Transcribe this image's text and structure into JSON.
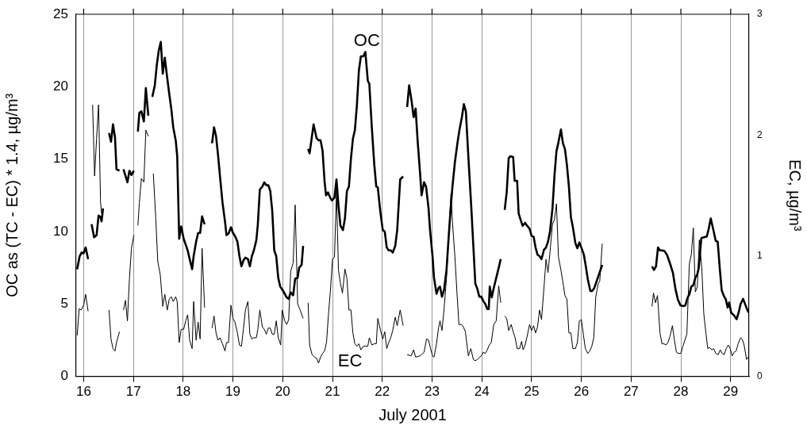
{
  "chart_data": {
    "type": "line",
    "xlabel": "July 2001",
    "ylabel": "OC as (TC - EC) * 1.4, µg/m³",
    "y2label": "EC, µg/m³",
    "xlim": [
      15.85,
      29.37
    ],
    "xticks": [
      16,
      17,
      18,
      19,
      20,
      21,
      22,
      23,
      24,
      25,
      26,
      27,
      28,
      29
    ],
    "ylim": [
      0,
      25
    ],
    "yticks": [
      0,
      5,
      10,
      15,
      20,
      25
    ],
    "y2lim": [
      0,
      3
    ],
    "y2ticks": [
      0,
      1,
      2,
      3
    ],
    "grid": "x",
    "legend": false,
    "marker": "none",
    "line_style": "solid",
    "annotations": [
      "OC",
      "EC"
    ],
    "series": [
      {
        "color": "#000000",
        "x": [
          15.87,
          15.92,
          15.96,
          16.0,
          16.04,
          16.09,
          16.12,
          16.16,
          16.21,
          16.26,
          16.3,
          16.34,
          16.36,
          16.39,
          16.45,
          16.51,
          16.55,
          16.59,
          16.63,
          16.66,
          16.72,
          16.76,
          16.8,
          16.88,
          16.92,
          16.96,
          17.01,
          17.05,
          17.09,
          17.12,
          17.16,
          17.21,
          17.25,
          17.3,
          17.34,
          17.38,
          17.43,
          17.47,
          17.51,
          17.55,
          17.59,
          17.63,
          17.68,
          17.72,
          17.76,
          17.8,
          17.85,
          17.88,
          17.92,
          17.96,
          18.01,
          18.05,
          18.09,
          18.13,
          18.18,
          18.21,
          18.26,
          18.3,
          18.34,
          18.38,
          18.43,
          18.5,
          18.58,
          18.62,
          18.66,
          18.7,
          18.74,
          18.79,
          18.84,
          18.87,
          18.91,
          18.96,
          19.0,
          19.04,
          19.09,
          19.13,
          19.17,
          19.21,
          19.25,
          19.3,
          19.34,
          19.38,
          19.42,
          19.47,
          19.5,
          19.54,
          19.59,
          19.63,
          19.67,
          19.71,
          19.75,
          19.79,
          19.83,
          19.87,
          19.91,
          19.95,
          19.99,
          20.04,
          20.08,
          20.12,
          20.16,
          20.21,
          20.25,
          20.3,
          20.33,
          20.38,
          20.41,
          20.46,
          20.51,
          20.54,
          20.62,
          20.68,
          20.72,
          20.76,
          20.8,
          20.84,
          20.87,
          20.91,
          20.96,
          20.99,
          21.04,
          21.08,
          21.12,
          21.16,
          21.21,
          21.25,
          21.29,
          21.33,
          21.37,
          21.41,
          21.45,
          21.49,
          21.53,
          21.57,
          21.62,
          21.66,
          21.71,
          21.74,
          21.79,
          21.84,
          21.88,
          21.91,
          21.96,
          22.01,
          22.05,
          22.09,
          22.13,
          22.17,
          22.21,
          22.26,
          22.3,
          22.36,
          22.42,
          22.46,
          22.5,
          22.54,
          22.59,
          22.63,
          22.67,
          22.71,
          22.76,
          22.79,
          22.84,
          22.88,
          22.93,
          22.96,
          23.01,
          23.04,
          23.09,
          23.13,
          23.16,
          23.2,
          23.24,
          23.29,
          23.33,
          23.37,
          23.41,
          23.46,
          23.51,
          23.55,
          23.6,
          23.64,
          23.68,
          23.73,
          23.79,
          23.83,
          23.87,
          23.91,
          23.95,
          23.99,
          24.03,
          24.07,
          24.11,
          24.14,
          24.16,
          24.2,
          24.24,
          24.29,
          24.34,
          24.38,
          24.42,
          24.46,
          24.5,
          24.54,
          24.57,
          24.63,
          24.66,
          24.71,
          24.74,
          24.79,
          24.82,
          24.87,
          24.91,
          24.96,
          25.0,
          25.04,
          25.08,
          25.12,
          25.16,
          25.2,
          25.25,
          25.29,
          25.33,
          25.37,
          25.42,
          25.46,
          25.5,
          25.53,
          25.59,
          25.63,
          25.67,
          25.71,
          25.75,
          25.79,
          25.83,
          25.88,
          25.92,
          25.96,
          26.01,
          26.05,
          26.09,
          26.13,
          26.18,
          26.22,
          26.26,
          26.3,
          26.35,
          26.42,
          26.9,
          27.42,
          27.46,
          27.5,
          27.54,
          27.58,
          27.62,
          27.67,
          27.72,
          27.76,
          27.8,
          27.84,
          27.89,
          27.94,
          27.99,
          28.05,
          28.09,
          28.13,
          28.17,
          28.21,
          28.25,
          28.29,
          28.33,
          28.36,
          28.41,
          28.46,
          28.52,
          28.56,
          28.6,
          28.66,
          28.7,
          28.74,
          28.78,
          28.82,
          28.87,
          28.9,
          28.94,
          28.97,
          29.01,
          29.07,
          29.12,
          29.16,
          29.2,
          29.25,
          29.3,
          29.34,
          29.36
        ],
        "values": [
          7.4,
          8.3,
          8.55,
          8.5,
          8.9,
          8.1,
          null,
          10.5,
          9.6,
          9.75,
          11.1,
          11.0,
          10.7,
          11.6,
          null,
          16.8,
          16.2,
          17.4,
          16.5,
          14.3,
          14.2,
          null,
          14.3,
          13.4,
          14.2,
          13.9,
          14.2,
          null,
          16.9,
          18.2,
          18.3,
          17.6,
          19.9,
          18.0,
          null,
          19.3,
          20.1,
          21.5,
          22.5,
          23.1,
          20.9,
          22.0,
          20.6,
          19.5,
          18.5,
          17.2,
          16.3,
          15.2,
          9.5,
          10.35,
          9.5,
          9.1,
          8.7,
          8.1,
          7.4,
          8.3,
          9.3,
          9.9,
          9.9,
          11.05,
          10.5,
          null,
          16.1,
          17.2,
          16.6,
          15.3,
          13.8,
          12.0,
          10.7,
          9.75,
          9.85,
          10.3,
          9.9,
          9.7,
          9.3,
          8.3,
          7.6,
          8.0,
          8.2,
          8.1,
          7.6,
          8.3,
          8.7,
          9.4,
          10.5,
          12.9,
          13.1,
          13.4,
          13.2,
          13.2,
          12.8,
          11.4,
          8.7,
          8.3,
          6.8,
          6.2,
          6.0,
          5.7,
          5.45,
          5.35,
          5.8,
          5.6,
          6.75,
          6.8,
          7.5,
          7.7,
          9.0,
          null,
          15.7,
          15.4,
          17.4,
          16.45,
          16.3,
          16.3,
          15.6,
          13.5,
          12.5,
          12.7,
          12.3,
          12.15,
          12.35,
          13.6,
          11.8,
          10.4,
          10.1,
          10.9,
          12.8,
          13.1,
          15.0,
          16.4,
          17.0,
          18.7,
          21.1,
          22.1,
          22.1,
          22.4,
          20.4,
          20.2,
          17.2,
          14.6,
          13.1,
          13.05,
          11.4,
          10.1,
          10.0,
          8.9,
          8.7,
          8.7,
          8.55,
          9.0,
          10.1,
          13.6,
          13.8,
          null,
          18.6,
          20.1,
          19.0,
          17.9,
          18.5,
          16.3,
          14.0,
          12.5,
          13.4,
          13.1,
          11.6,
          10.1,
          8.3,
          6.8,
          5.7,
          6.1,
          6.2,
          5.5,
          5.95,
          7.3,
          9.4,
          11.4,
          13.1,
          14.8,
          16.1,
          17.0,
          17.9,
          18.8,
          18.3,
          15.15,
          11.6,
          9.0,
          6.4,
          6.05,
          5.5,
          5.5,
          5.2,
          5.0,
          4.65,
          4.65,
          6.2,
          5.45,
          6.1,
          6.8,
          7.5,
          8.1,
          null,
          11.5,
          12.7,
          15.05,
          15.2,
          15.15,
          13.5,
          13.5,
          11.25,
          10.7,
          10.4,
          10.6,
          10.4,
          10.2,
          9.7,
          9.65,
          8.9,
          8.4,
          8.3,
          8.1,
          8.75,
          8.9,
          9.3,
          10.0,
          11.6,
          13.85,
          15.55,
          16.0,
          17.05,
          16.1,
          15.7,
          14.6,
          13.1,
          11.0,
          10.3,
          9.2,
          8.85,
          9.25,
          8.8,
          8.4,
          7.6,
          6.7,
          5.9,
          5.9,
          6.1,
          6.5,
          7.0,
          7.7,
          null,
          7.6,
          7.35,
          7.6,
          8.9,
          8.7,
          8.7,
          8.65,
          8.4,
          8.0,
          7.6,
          7.15,
          6.05,
          5.3,
          4.9,
          4.85,
          4.9,
          5.4,
          5.65,
          6.2,
          6.3,
          6.8,
          7.05,
          7.5,
          9.55,
          9.6,
          9.65,
          10.2,
          10.9,
          10.0,
          9.35,
          9.3,
          7.5,
          5.95,
          5.5,
          5.35,
          4.75,
          5.1,
          4.4,
          4.2,
          3.95,
          4.4,
          5.0,
          5.35,
          4.9,
          4.55,
          4.4
        ]
      },
      {
        "color": "#000000",
        "axis": "y2",
        "x": [
          15.87,
          15.91,
          15.95,
          16.0,
          16.04,
          16.09,
          16.13,
          16.18,
          16.22,
          16.26,
          16.3,
          16.34,
          16.36,
          16.45,
          16.51,
          16.55,
          16.59,
          16.63,
          16.66,
          16.72,
          16.76,
          16.8,
          16.84,
          16.88,
          16.92,
          16.96,
          17.01,
          17.05,
          17.09,
          17.12,
          17.16,
          17.21,
          17.25,
          17.3,
          17.35,
          17.4,
          17.45,
          17.49,
          17.54,
          17.59,
          17.63,
          17.68,
          17.72,
          17.76,
          17.8,
          17.85,
          17.88,
          17.92,
          17.96,
          18.01,
          18.05,
          18.09,
          18.13,
          18.18,
          18.21,
          18.26,
          18.3,
          18.34,
          18.38,
          18.43,
          18.5,
          18.58,
          18.62,
          18.66,
          18.7,
          18.74,
          18.79,
          18.84,
          18.87,
          18.91,
          18.96,
          19.0,
          19.04,
          19.09,
          19.13,
          19.17,
          19.21,
          19.25,
          19.3,
          19.34,
          19.38,
          19.42,
          19.47,
          19.5,
          19.54,
          19.59,
          19.63,
          19.67,
          19.71,
          19.75,
          19.79,
          19.83,
          19.87,
          19.91,
          19.96,
          19.99,
          20.04,
          20.08,
          20.12,
          20.16,
          20.21,
          20.25,
          20.3,
          20.35,
          20.41,
          20.46,
          20.51,
          20.54,
          20.59,
          20.64,
          20.68,
          20.72,
          20.76,
          20.8,
          20.84,
          20.88,
          20.92,
          20.96,
          21.0,
          21.04,
          21.08,
          21.12,
          21.16,
          21.2,
          21.25,
          21.29,
          21.33,
          21.37,
          21.41,
          21.45,
          21.49,
          21.53,
          21.57,
          21.62,
          21.66,
          21.71,
          21.74,
          21.79,
          21.84,
          21.88,
          21.91,
          21.96,
          22.01,
          22.05,
          22.09,
          22.13,
          22.17,
          22.21,
          22.26,
          22.3,
          22.36,
          22.42,
          22.46,
          22.5,
          22.58,
          22.63,
          22.67,
          22.76,
          22.84,
          22.89,
          22.93,
          22.97,
          23.01,
          23.04,
          23.09,
          23.13,
          23.16,
          23.2,
          23.24,
          23.29,
          23.33,
          23.38,
          23.41,
          23.46,
          23.5,
          23.54,
          23.59,
          23.63,
          23.67,
          23.73,
          23.78,
          23.83,
          23.87,
          23.91,
          23.96,
          23.99,
          24.03,
          24.07,
          24.11,
          24.15,
          24.19,
          24.24,
          24.29,
          24.34,
          24.38,
          24.42,
          24.46,
          24.5,
          24.54,
          24.59,
          24.63,
          24.67,
          24.71,
          24.76,
          24.8,
          24.83,
          24.87,
          24.91,
          24.96,
          25.0,
          25.04,
          25.08,
          25.12,
          25.16,
          25.2,
          25.25,
          25.29,
          25.33,
          25.37,
          25.42,
          25.46,
          25.5,
          25.54,
          25.59,
          25.63,
          25.67,
          25.71,
          25.75,
          25.79,
          25.83,
          25.88,
          25.92,
          25.96,
          26.0,
          26.04,
          26.08,
          26.13,
          26.17,
          26.21,
          26.25,
          26.29,
          26.34,
          26.37,
          26.42,
          26.9,
          27.42,
          27.45,
          27.49,
          27.53,
          27.58,
          27.62,
          27.66,
          27.7,
          27.74,
          27.78,
          27.83,
          27.87,
          27.91,
          27.95,
          28.0,
          28.04,
          28.08,
          28.12,
          28.17,
          28.21,
          28.25,
          28.29,
          28.33,
          28.37,
          28.42,
          28.46,
          28.5,
          28.54,
          28.58,
          28.62,
          28.66,
          28.7,
          28.75,
          28.79,
          28.83,
          28.87,
          28.91,
          28.95,
          28.99,
          29.03,
          29.07,
          29.11,
          29.15,
          29.2,
          29.24,
          29.27,
          29.32,
          29.35
        ],
        "values": [
          0.34,
          0.56,
          0.55,
          0.59,
          0.68,
          0.54,
          null,
          2.25,
          1.66,
          1.97,
          2.25,
          1.44,
          1.35,
          null,
          0.55,
          0.31,
          0.23,
          0.21,
          0.28,
          0.37,
          null,
          0.55,
          0.63,
          0.46,
          0.81,
          1.06,
          1.17,
          null,
          1.25,
          1.44,
          1.64,
          1.61,
          2.04,
          1.99,
          null,
          1.68,
          1.3,
          0.95,
          0.84,
          0.58,
          0.68,
          0.55,
          0.64,
          0.66,
          0.62,
          0.66,
          0.62,
          0.28,
          0.39,
          0.39,
          0.46,
          0.51,
          0.3,
          0.23,
          0.62,
          0.3,
          0.45,
          0.31,
          1.06,
          0.57,
          null,
          0.4,
          0.5,
          0.36,
          0.3,
          0.32,
          0.27,
          0.21,
          0.28,
          0.28,
          0.59,
          0.48,
          0.45,
          0.36,
          0.26,
          0.25,
          0.39,
          0.55,
          0.62,
          0.35,
          0.31,
          0.32,
          0.32,
          0.39,
          0.55,
          0.41,
          0.39,
          0.35,
          0.4,
          0.4,
          0.35,
          0.35,
          0.46,
          0.32,
          0.26,
          0.55,
          0.46,
          0.43,
          0.47,
          0.87,
          0.94,
          1.42,
          0.6,
          0.55,
          0.48,
          null,
          0.61,
          0.26,
          0.18,
          0.16,
          0.15,
          0.11,
          0.16,
          0.19,
          0.21,
          0.28,
          0.52,
          0.72,
          0.97,
          0.99,
          1.53,
          0.88,
          0.77,
          0.69,
          0.89,
          0.81,
          0.55,
          0.55,
          0.36,
          0.27,
          0.25,
          0.27,
          0.22,
          0.25,
          0.25,
          0.25,
          0.32,
          0.26,
          0.27,
          0.27,
          0.48,
          0.39,
          0.31,
          0.37,
          0.23,
          0.28,
          0.32,
          0.38,
          0.49,
          0.42,
          0.55,
          0.42,
          null,
          0.18,
          0.17,
          0.22,
          0.16,
          0.17,
          0.2,
          0.31,
          0.3,
          0.23,
          0.17,
          0.16,
          0.27,
          0.4,
          0.46,
          0.38,
          0.55,
          0.81,
          1.13,
          1.51,
          1.28,
          0.99,
          0.7,
          0.43,
          0.43,
          0.41,
          0.37,
          0.17,
          0.23,
          0.14,
          0.13,
          0.14,
          0.16,
          0.17,
          0.2,
          0.19,
          0.22,
          0.26,
          0.28,
          0.43,
          0.46,
          0.75,
          0.61,
          null,
          0.5,
          0.48,
          0.38,
          0.43,
          0.37,
          0.32,
          0.23,
          0.23,
          0.29,
          0.22,
          0.26,
          0.33,
          0.43,
          0.38,
          0.42,
          0.36,
          0.41,
          0.55,
          0.47,
          0.74,
          0.97,
          0.86,
          1.03,
          1.26,
          1.3,
          1.43,
          0.99,
          0.88,
          0.78,
          0.67,
          0.64,
          0.36,
          0.36,
          0.23,
          0.23,
          0.28,
          0.46,
          0.47,
          0.35,
          0.23,
          0.19,
          0.21,
          0.25,
          0.32,
          0.66,
          0.77,
          0.79,
          1.1,
          null,
          0.58,
          0.69,
          0.61,
          0.67,
          0.36,
          0.27,
          0.27,
          0.26,
          0.28,
          0.33,
          0.42,
          0.3,
          0.2,
          0.19,
          0.19,
          0.25,
          0.3,
          0.35,
          0.93,
          1.01,
          1.23,
          0.7,
          0.74,
          1.13,
          0.9,
          0.52,
          0.37,
          0.23,
          0.24,
          0.22,
          0.23,
          0.19,
          0.18,
          0.22,
          0.19,
          0.18,
          0.23,
          0.26,
          0.23,
          0.17,
          0.2,
          0.21,
          0.27,
          0.32,
          0.3,
          0.26,
          0.14,
          0.16
        ]
      }
    ]
  }
}
